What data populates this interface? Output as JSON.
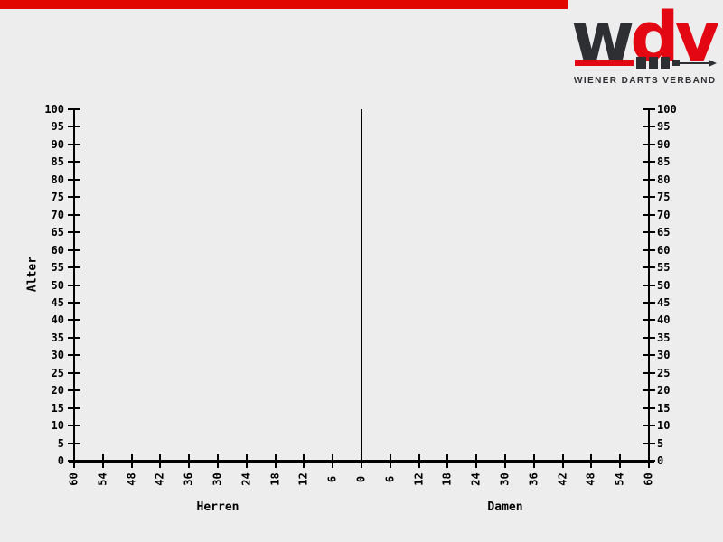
{
  "logo": {
    "word_parts": [
      {
        "text": "w",
        "color": "#2d2f33"
      },
      {
        "text": "d",
        "color": "#e30613"
      },
      {
        "text": "v",
        "color": "#e30613"
      }
    ],
    "tagline": "WIENER DARTS VERBAND"
  },
  "colors": {
    "background": "#ededed",
    "stripe_red": "#e10600",
    "logo_red": "#e30613",
    "logo_dark": "#2d2f33",
    "axis": "#000000"
  },
  "chart_data": {
    "type": "bar",
    "subtype": "population-pyramid",
    "title": "",
    "ylabel": "Alter",
    "y_axis": {
      "min": 0,
      "max": 100,
      "step": 5
    },
    "x_axis": {
      "min": 0,
      "max": 60,
      "step": 6,
      "mirrored": true
    },
    "groups": [
      {
        "label": "Herren",
        "side": "left"
      },
      {
        "label": "Damen",
        "side": "right"
      }
    ],
    "series": [
      {
        "name": "Herren",
        "values": []
      },
      {
        "name": "Damen",
        "values": []
      }
    ],
    "grid": false,
    "legend": false
  }
}
